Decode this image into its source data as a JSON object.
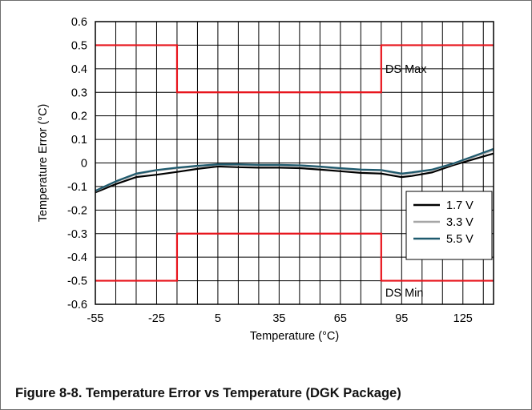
{
  "caption": "Figure 8-8. Temperature Error vs Temperature (DGK Package)",
  "chart_data": {
    "type": "line",
    "title": "",
    "xlabel": "Temperature (°C)",
    "ylabel": "Temperature Error (°C)",
    "xlim": [
      -55,
      140
    ],
    "ylim": [
      -0.6,
      0.6
    ],
    "x_tick_values": [
      -55,
      -25,
      5,
      35,
      65,
      95,
      125
    ],
    "x_tick_labels": [
      "-55",
      "-25",
      "5",
      "35",
      "65",
      "95",
      "125"
    ],
    "x_grid_step": 10,
    "y_tick_values": [
      0.6,
      0.5,
      0.4,
      0.3,
      0.2,
      0.1,
      0,
      -0.1,
      -0.2,
      -0.3,
      -0.4,
      -0.5,
      -0.6
    ],
    "y_tick_labels": [
      "0.6",
      "0.5",
      "0.4",
      "0.3",
      "0.2",
      "0.1",
      "0",
      "-0.1",
      "-0.2",
      "-0.3",
      "-0.4",
      "-0.5",
      "-0.6"
    ],
    "grid": true,
    "legend": {
      "position": "right-middle",
      "entries": [
        "1.7 V",
        "3.3 V",
        "5.5 V"
      ]
    },
    "series": [
      {
        "name": "1.7 V",
        "color": "#000000",
        "x": [
          -55,
          -45,
          -35,
          -25,
          -15,
          -5,
          5,
          15,
          25,
          35,
          45,
          55,
          65,
          75,
          85,
          95,
          100,
          110,
          120,
          130,
          140
        ],
        "y": [
          -0.125,
          -0.09,
          -0.06,
          -0.05,
          -0.038,
          -0.025,
          -0.015,
          -0.018,
          -0.02,
          -0.02,
          -0.022,
          -0.028,
          -0.035,
          -0.042,
          -0.045,
          -0.06,
          -0.055,
          -0.04,
          -0.01,
          0.015,
          0.04
        ]
      },
      {
        "name": "3.3 V",
        "color": "#a6a6a6",
        "x": [
          -55,
          -45,
          -35,
          -25,
          -15,
          -5,
          5,
          15,
          25,
          35,
          45,
          55,
          65,
          75,
          85,
          95,
          100,
          110,
          120,
          130,
          140
        ],
        "y": [
          -0.12,
          -0.08,
          -0.048,
          -0.032,
          -0.022,
          -0.015,
          -0.008,
          -0.008,
          -0.01,
          -0.01,
          -0.013,
          -0.018,
          -0.025,
          -0.03,
          -0.032,
          -0.048,
          -0.043,
          -0.03,
          -0.005,
          0.025,
          0.055
        ]
      },
      {
        "name": "5.5 V",
        "color": "#1e5a6e",
        "x": [
          -55,
          -45,
          -35,
          -25,
          -15,
          -5,
          5,
          15,
          25,
          35,
          45,
          55,
          65,
          75,
          85,
          95,
          100,
          110,
          120,
          130,
          140
        ],
        "y": [
          -0.118,
          -0.078,
          -0.045,
          -0.03,
          -0.02,
          -0.012,
          -0.006,
          -0.006,
          -0.008,
          -0.008,
          -0.01,
          -0.015,
          -0.022,
          -0.028,
          -0.03,
          -0.045,
          -0.04,
          -0.028,
          -0.003,
          0.028,
          0.06
        ]
      }
    ],
    "limits": [
      {
        "label": "DS Max",
        "color": "#e8141c",
        "x": [
          -55,
          -15,
          -15,
          85,
          85,
          140
        ],
        "y": [
          0.5,
          0.5,
          0.3,
          0.3,
          0.5,
          0.5
        ]
      },
      {
        "label": "DS Min",
        "color": "#e8141c",
        "x": [
          -55,
          -15,
          -15,
          85,
          85,
          140
        ],
        "y": [
          -0.5,
          -0.5,
          -0.3,
          -0.3,
          -0.5,
          -0.5
        ]
      }
    ]
  }
}
